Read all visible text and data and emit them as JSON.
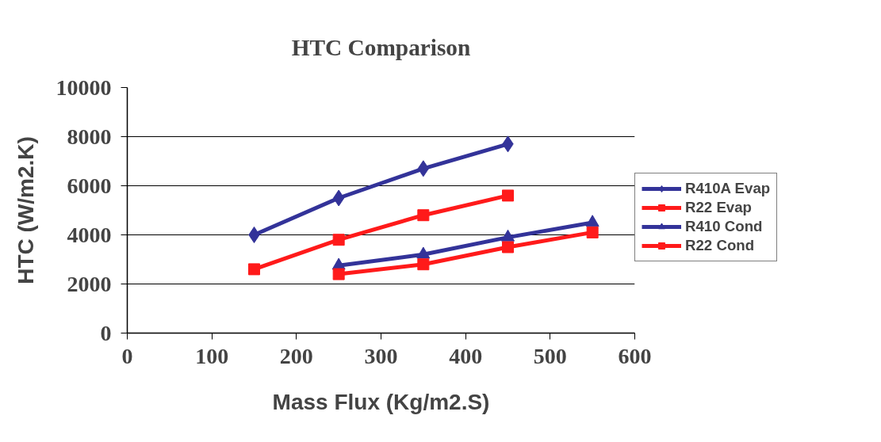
{
  "chart_data": {
    "type": "line",
    "title": "HTC Comparison",
    "xlabel": "Mass Flux (Kg/m2.S)",
    "ylabel": "HTC (W/m2.K)",
    "xlim": [
      0,
      600
    ],
    "xticks": [
      0,
      100,
      200,
      300,
      400,
      500,
      600
    ],
    "ylim": [
      0,
      10000
    ],
    "yticks": [
      0,
      2000,
      4000,
      6000,
      8000,
      10000
    ],
    "grid": "y",
    "legend": "right",
    "series": [
      {
        "name": "R410A Evap",
        "color": "#333399",
        "marker": "diamond",
        "x": [
          150,
          250,
          350,
          450
        ],
        "values": [
          4000,
          5500,
          6700,
          7700
        ]
      },
      {
        "name": "R22 Evap",
        "color": "#ff1a1a",
        "marker": "square",
        "x": [
          150,
          250,
          350,
          450
        ],
        "values": [
          2600,
          3800,
          4800,
          5600
        ]
      },
      {
        "name": "R410 Cond",
        "color": "#333399",
        "marker": "triangle",
        "x": [
          250,
          350,
          450,
          550
        ],
        "values": [
          2750,
          3200,
          3900,
          4500
        ]
      },
      {
        "name": "R22 Cond",
        "color": "#ff1a1a",
        "marker": "square",
        "x": [
          250,
          350,
          450,
          550
        ],
        "values": [
          2400,
          2800,
          3500,
          4100
        ]
      }
    ]
  }
}
